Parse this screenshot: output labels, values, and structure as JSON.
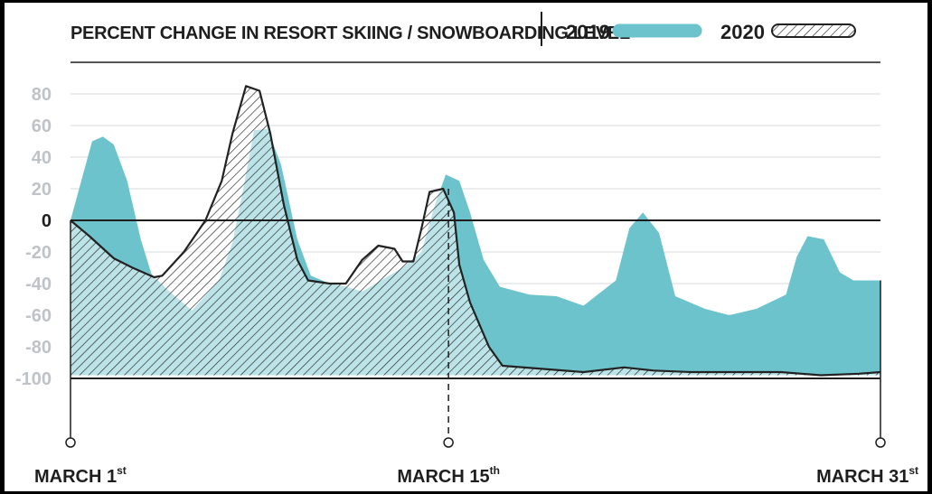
{
  "chart_data": {
    "type": "area",
    "title": "PERCENT CHANGE IN RESORT SKIING / SNOWBOARDING LEVEL",
    "ylim": [
      -100,
      90
    ],
    "yticks": [
      80,
      60,
      40,
      20,
      0,
      -20,
      -40,
      -60,
      -80,
      -100
    ],
    "grid": true,
    "legend_position": "top-right",
    "x_labels": [
      {
        "day": 1,
        "label": "MARCH 1",
        "sup": "st"
      },
      {
        "day": 15,
        "label": "MARCH 15",
        "sup": "th"
      },
      {
        "day": 31,
        "label": "MARCH 31",
        "sup": "st"
      }
    ],
    "series": [
      {
        "name": "2019",
        "color": "#6cc3cc",
        "style": "solid",
        "points": [
          [
            1,
            0
          ],
          [
            1.4,
            25
          ],
          [
            1.8,
            50
          ],
          [
            2.2,
            53
          ],
          [
            2.6,
            48
          ],
          [
            3.1,
            25
          ],
          [
            3.6,
            -12
          ],
          [
            4.0,
            -34
          ],
          [
            4.6,
            -44
          ],
          [
            5.5,
            -57
          ],
          [
            6.5,
            -38
          ],
          [
            7.0,
            -14
          ],
          [
            7.4,
            20
          ],
          [
            7.8,
            57
          ],
          [
            8.3,
            58
          ],
          [
            8.8,
            35
          ],
          [
            9.4,
            -12
          ],
          [
            9.9,
            -35
          ],
          [
            10.6,
            -40
          ],
          [
            11.2,
            -42
          ],
          [
            11.8,
            -45
          ],
          [
            12.5,
            -38
          ],
          [
            13.3,
            -30
          ],
          [
            14.0,
            -20
          ],
          [
            14.5,
            10
          ],
          [
            14.9,
            29
          ],
          [
            15.4,
            25
          ],
          [
            15.8,
            5
          ],
          [
            16.3,
            -25
          ],
          [
            16.9,
            -42
          ],
          [
            18.0,
            -47
          ],
          [
            19.0,
            -48
          ],
          [
            20.0,
            -54
          ],
          [
            21.2,
            -38
          ],
          [
            21.7,
            -5
          ],
          [
            22.2,
            5
          ],
          [
            22.8,
            -8
          ],
          [
            23.4,
            -48
          ],
          [
            24.5,
            -56
          ],
          [
            25.4,
            -60
          ],
          [
            26.4,
            -56
          ],
          [
            27.5,
            -47
          ],
          [
            27.9,
            -23
          ],
          [
            28.3,
            -10
          ],
          [
            28.9,
            -12
          ],
          [
            29.5,
            -33
          ],
          [
            30.0,
            -38
          ],
          [
            31,
            -38
          ],
          [
            31,
            -98
          ],
          [
            1,
            -98
          ]
        ]
      },
      {
        "name": "2020",
        "color": "#222222",
        "style": "hatched",
        "points": [
          [
            1,
            0
          ],
          [
            1.7,
            -10
          ],
          [
            2.6,
            -24
          ],
          [
            3.3,
            -30
          ],
          [
            4.1,
            -36
          ],
          [
            4.4,
            -35
          ],
          [
            5.2,
            -20
          ],
          [
            6.0,
            0
          ],
          [
            6.6,
            25
          ],
          [
            7.0,
            55
          ],
          [
            7.5,
            85
          ],
          [
            8.0,
            82
          ],
          [
            8.4,
            55
          ],
          [
            8.9,
            10
          ],
          [
            9.4,
            -25
          ],
          [
            9.8,
            -38
          ],
          [
            10.6,
            -40
          ],
          [
            11.2,
            -40
          ],
          [
            11.8,
            -25
          ],
          [
            12.4,
            -16
          ],
          [
            13.0,
            -18
          ],
          [
            13.3,
            -26
          ],
          [
            13.7,
            -26
          ],
          [
            14.0,
            -5
          ],
          [
            14.3,
            18
          ],
          [
            14.8,
            20
          ],
          [
            15.2,
            5
          ],
          [
            15.4,
            -28
          ],
          [
            15.8,
            -52
          ],
          [
            16.5,
            -80
          ],
          [
            17.0,
            -92
          ],
          [
            18.5,
            -94
          ],
          [
            20.0,
            -96
          ],
          [
            21.5,
            -93
          ],
          [
            22.6,
            -95
          ],
          [
            24.0,
            -96
          ],
          [
            25.6,
            -96
          ],
          [
            27.3,
            -96
          ],
          [
            28.8,
            -98
          ],
          [
            30.2,
            -97
          ],
          [
            31,
            -96
          ],
          [
            31,
            -98
          ],
          [
            1,
            -98
          ]
        ]
      }
    ]
  }
}
